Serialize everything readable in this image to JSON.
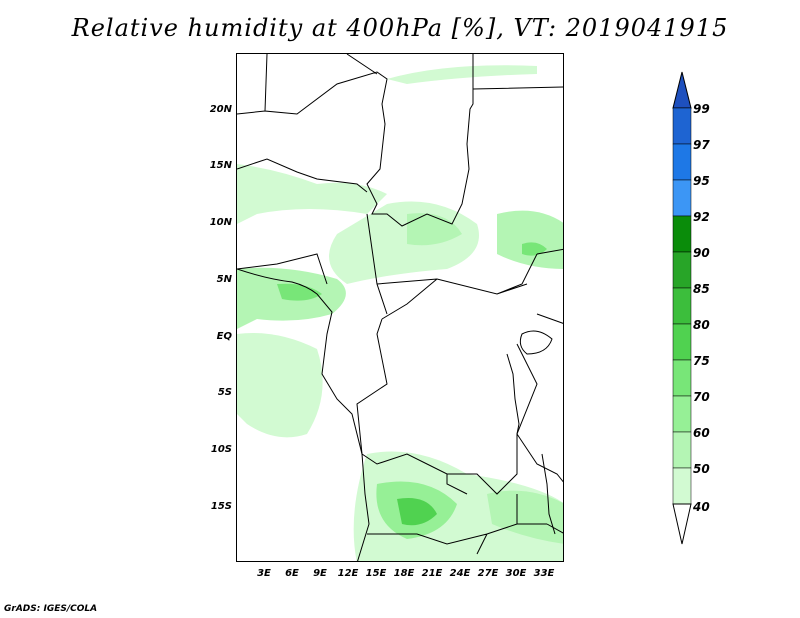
{
  "title": "Relative humidity at 400hPa [%], VT: 2019041915",
  "footer": "GrADS: IGES/COLA",
  "map": {
    "variable": "Relative humidity",
    "level": "400hPa",
    "units": "%",
    "valid_time": "2019041915",
    "lat_labels": [
      "20N",
      "15N",
      "10N",
      "5N",
      "EQ",
      "5S",
      "10S",
      "15S"
    ],
    "lon_labels": [
      "3E",
      "6E",
      "9E",
      "12E",
      "15E",
      "18E",
      "21E",
      "24E",
      "27E",
      "30E",
      "33E"
    ]
  },
  "colorbar": {
    "labels": [
      "99",
      "97",
      "95",
      "92",
      "90",
      "85",
      "80",
      "75",
      "70",
      "60",
      "50",
      "40"
    ],
    "colors": [
      "#1e64d2",
      "#1e78e6",
      "#3c96f5",
      "#0a8c0a",
      "#28a528",
      "#3cbe3c",
      "#50d250",
      "#78e678",
      "#96f096",
      "#b4f5b4",
      "#d2fad2",
      "#f0fff0"
    ],
    "top_arrow_color": "#1e50be",
    "bottom_arrow_color": "#ffffff"
  }
}
